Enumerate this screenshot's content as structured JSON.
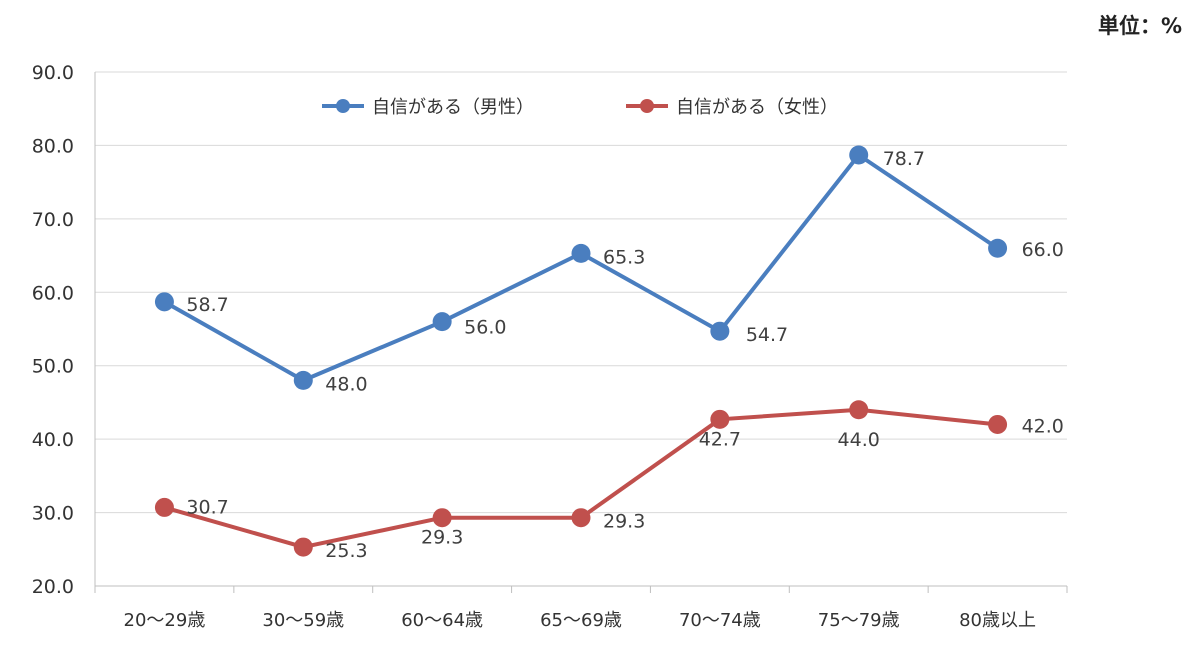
{
  "unit_label": "単位：%",
  "chart_data": {
    "type": "line",
    "categories": [
      "20～29歳",
      "30～59歳",
      "60～64歳",
      "65～69歳",
      "70～74歳",
      "75～79歳",
      "80歳以上"
    ],
    "series": [
      {
        "name": "自信がある（男性）",
        "values": [
          58.7,
          48.0,
          56.0,
          65.3,
          54.7,
          78.7,
          66.0
        ],
        "color": "#4a7ebf"
      },
      {
        "name": "自信がある（女性）",
        "values": [
          30.7,
          25.3,
          29.3,
          29.3,
          42.7,
          44.0,
          42.0
        ],
        "color": "#c0504d"
      }
    ],
    "ylim": [
      20,
      90
    ],
    "yticks": [
      "20.0",
      "30.0",
      "40.0",
      "50.0",
      "60.0",
      "70.0",
      "80.0",
      "90.0"
    ],
    "grid": true,
    "legend_position": "top-center"
  }
}
